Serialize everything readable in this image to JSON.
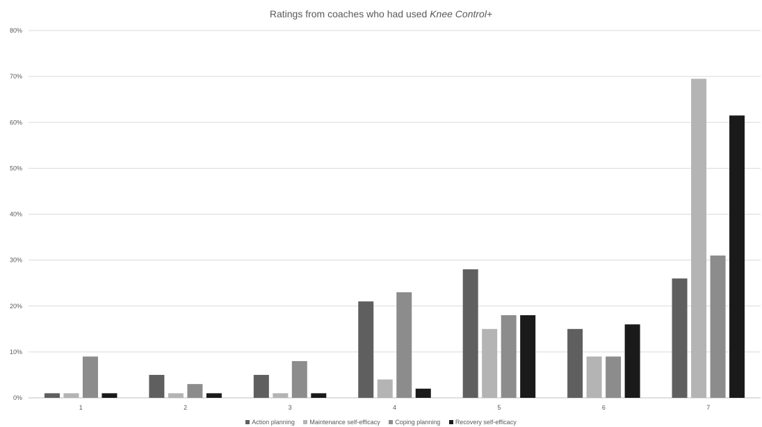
{
  "chart_data": {
    "type": "bar",
    "title_main": "Ratings from coaches who had used ",
    "title_emphasis": "Knee Control+",
    "categories": [
      "1",
      "2",
      "3",
      "4",
      "5",
      "6",
      "7"
    ],
    "y_ticks": [
      "0%",
      "10%",
      "20%",
      "30%",
      "40%",
      "50%",
      "60%",
      "70%",
      "80%"
    ],
    "ylim": [
      0,
      80
    ],
    "y_unit": "%",
    "grid": true,
    "legend_position": "bottom",
    "series": [
      {
        "name": "Action planning",
        "color": "#5f5f5f",
        "values": [
          1,
          5,
          5,
          21,
          28,
          15,
          26
        ]
      },
      {
        "name": "Maintenance self-efficacy",
        "color": "#b4b4b4",
        "values": [
          1,
          1,
          1,
          4,
          15,
          9,
          69.5
        ]
      },
      {
        "name": "Coping planning",
        "color": "#8c8c8c",
        "values": [
          9,
          3,
          8,
          23,
          18,
          9,
          31
        ]
      },
      {
        "name": "Recovery self-efficacy",
        "color": "#1a1a1a",
        "values": [
          1,
          1,
          1,
          2,
          18,
          16,
          61.5
        ]
      }
    ]
  }
}
